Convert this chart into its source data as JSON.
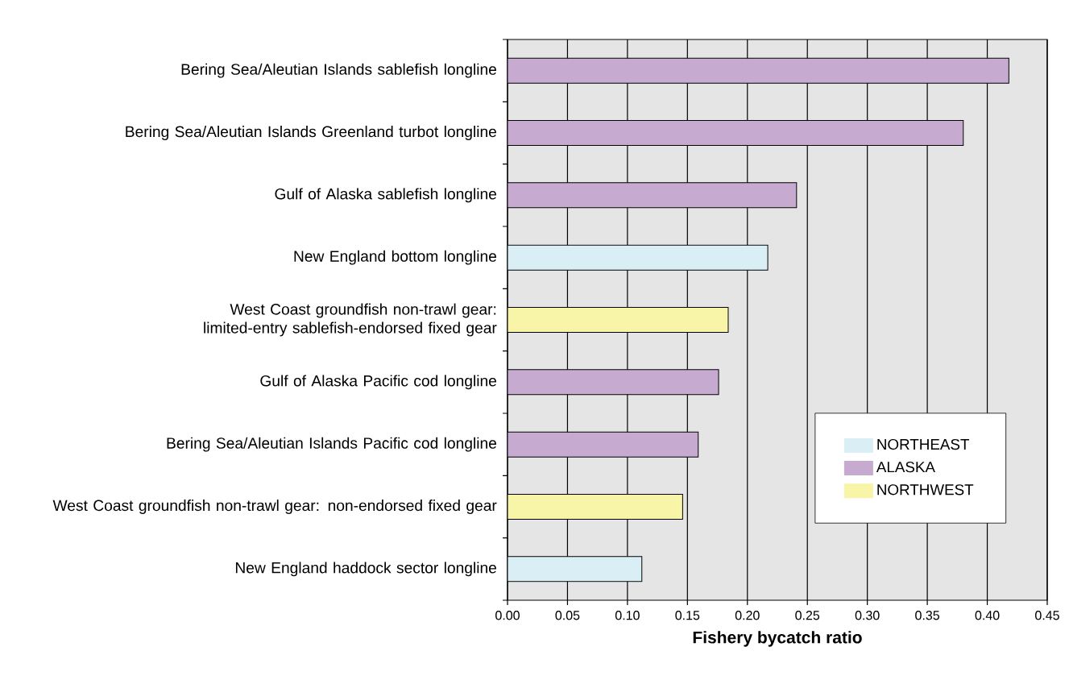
{
  "chart_data": {
    "type": "bar",
    "orientation": "horizontal",
    "xlabel": "Fishery bycatch ratio",
    "categories": [
      "Bering Sea/Aleutian Islands sablefish longline",
      "Bering Sea/Aleutian Islands Greenland turbot longline",
      "Gulf of Alaska sablefish longline",
      "New England bottom longline",
      "West Coast groundfish non-trawl gear: limited-entry sablefish-endorsed fixed gear",
      "Gulf of Alaska Pacific cod longline",
      "Bering Sea/Aleutian Islands Pacific cod longline",
      "West Coast groundfish non-trawl gear: non-endorsed fixed gear",
      "New England haddock sector longline"
    ],
    "series": [
      {
        "name": "NORTHEAST",
        "color": "#d9eff5",
        "values": [
          null,
          null,
          null,
          0.217,
          null,
          null,
          null,
          null,
          0.112
        ]
      },
      {
        "name": "ALASKA",
        "color": "#c7aad0",
        "values": [
          0.418,
          0.38,
          0.241,
          null,
          null,
          0.176,
          0.159,
          null,
          null
        ]
      },
      {
        "name": "NORTHWEST",
        "color": "#f8f4a8",
        "values": [
          null,
          null,
          null,
          null,
          0.184,
          null,
          null,
          0.146,
          null
        ]
      }
    ],
    "xlim": [
      0,
      0.45
    ],
    "xticks": [
      {
        "value": 0,
        "label": "0.00"
      },
      {
        "value": 0.05,
        "label": "0.05"
      },
      {
        "value": 0.1,
        "label": "0.10"
      },
      {
        "value": 0.15,
        "label": "0.15"
      },
      {
        "value": 0.2,
        "label": "0.20"
      },
      {
        "value": 0.25,
        "label": "0.25"
      },
      {
        "value": 0.3,
        "label": "0.30"
      },
      {
        "value": 0.35,
        "label": "0.35"
      },
      {
        "value": 0.4,
        "label": "0.40"
      },
      {
        "value": 0.45,
        "label": "0.45"
      }
    ],
    "grid": "x",
    "legend": "bottom right"
  }
}
